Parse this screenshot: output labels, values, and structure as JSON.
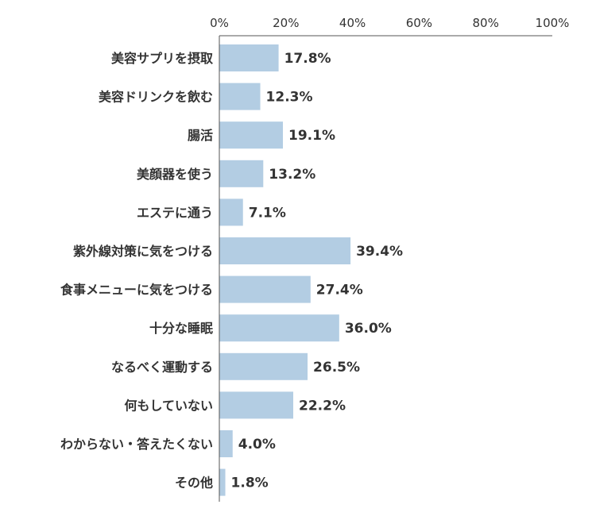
{
  "chart_data": {
    "type": "bar",
    "orientation": "horizontal",
    "categories": [
      "美容サプリを摂取",
      "美容ドリンクを飲む",
      "腸活",
      "美顔器を使う",
      "エステに通う",
      "紫外線対策に気をつける",
      "食事メニューに気をつける",
      "十分な睡眠",
      "なるべく運動する",
      "何もしていない",
      "わからない・答えたくない",
      "その他"
    ],
    "values": [
      17.8,
      12.3,
      19.1,
      13.2,
      7.1,
      39.4,
      27.4,
      36.0,
      26.5,
      22.2,
      4.0,
      1.8
    ],
    "value_labels": [
      "17.8%",
      "12.3%",
      "19.1%",
      "13.2%",
      "7.1%",
      "39.4%",
      "27.4%",
      "36.0%",
      "26.5%",
      "22.2%",
      "4.0%",
      "1.8%"
    ],
    "xlim": [
      0,
      100
    ],
    "x_ticks": [
      0,
      20,
      40,
      60,
      80,
      100
    ],
    "x_tick_labels": [
      "0%",
      "20%",
      "40%",
      "60%",
      "80%",
      "100%"
    ],
    "axis_position": "top",
    "grid": false,
    "legend": "none",
    "bar_color": "#b3cde3",
    "text_color": "#333333",
    "axis_color": "#555555"
  }
}
